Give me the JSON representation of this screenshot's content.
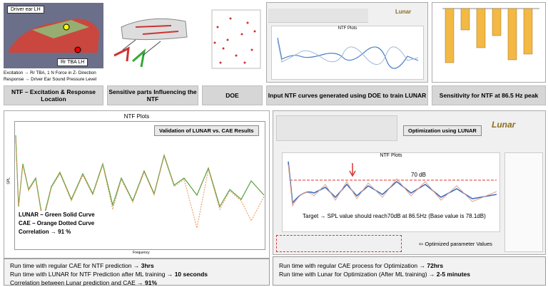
{
  "top_panels": [
    {
      "caption": "NTF – Excitation & Response Location",
      "labels": [
        "Driver ear LH",
        "Rr TBA LH"
      ],
      "notes": [
        "Excitation → Rr TBA, 1 N Force in Z- Direction",
        "Response → Driver Ear Sound Pressure Level"
      ]
    },
    {
      "caption": "Sensitive parts Influencing the NTF"
    },
    {
      "caption": "DOE"
    },
    {
      "caption": "Input NTF curves generated using DOE to train LUNAR",
      "plot_title": "NTF Plots",
      "logo": "Lunar"
    },
    {
      "caption": "Sensitivity for NTF at 86.5 Hz peak"
    }
  ],
  "validation": {
    "plot_title": "NTF Plots",
    "banner": "Validation of LUNAR vs. CAE Results",
    "y_label": "SPL",
    "x_label": "Frequency",
    "legend": [
      "LUNAR – Green Solid Curve",
      "CAE – Orange Dotted Curve",
      "Correlation → 91 %"
    ],
    "notes": [
      {
        "text": "Run time with regular CAE for NTF prediction → ",
        "bold": "3hrs"
      },
      {
        "text": "Run time with LUNAR  for NTF Prediction after ML training → ",
        "bold": "10 seconds"
      },
      {
        "text": "Correlation between Lunar prediction and CAE → ",
        "bold": "91%"
      }
    ]
  },
  "optimization": {
    "banner": "Optimization using LUNAR",
    "logo": "Lunar",
    "plot_title": "NTF Plots",
    "target_label": "70 dB",
    "target_note": "Target → SPL value should reach70dB at 86.5Hz (Base value is 78.1dB)",
    "params_note": "Optimized parameter Values",
    "notes": [
      {
        "text": "Run time with regular CAE process for Optimization → ",
        "bold": "72hrs"
      },
      {
        "text": "Run time with Lunar for Optimization (After ML training) → ",
        "bold": "2-5 minutes"
      }
    ]
  }
}
